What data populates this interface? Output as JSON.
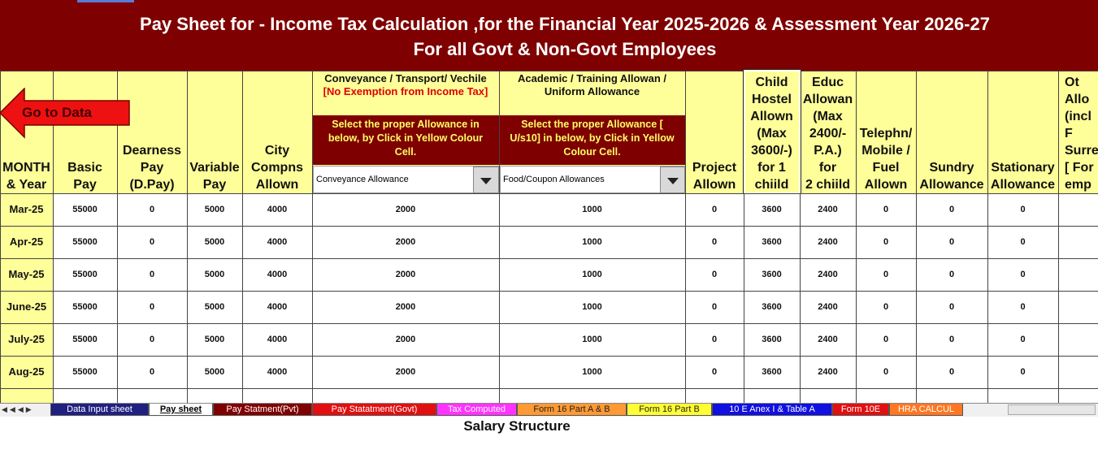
{
  "header": {
    "title_lines": [
      "Pay Sheet for - Income Tax Calculation ,for the Financial Year 2025-2026 &  Assessment Year 2026-27",
      "For all Govt & Non-Govt Employees"
    ]
  },
  "go_to_data": "Go to Data",
  "columns": [
    {
      "lines": [
        "MONTH",
        "& Year"
      ]
    },
    {
      "lines": [
        "Basic",
        "Pay"
      ]
    },
    {
      "lines": [
        "Dearness",
        "Pay",
        "(D.Pay)"
      ]
    },
    {
      "lines": [
        "Variable",
        "Pay"
      ]
    },
    {
      "lines": [
        "City",
        "Compns",
        "Allown"
      ]
    },
    {
      "lines": [
        "Project",
        "Allown"
      ]
    },
    {
      "lines": [
        "Child",
        "Hostel",
        "Allown",
        "(Max",
        "3600/-)",
        "for 1",
        "chiild"
      ]
    },
    {
      "lines": [
        "Educ",
        "Allowan",
        "(Max",
        "2400/-",
        "P.A.)",
        "for",
        "2 chiild"
      ]
    },
    {
      "lines": [
        "Telephn/",
        "Mobile /",
        "Fuel",
        "Allown"
      ]
    },
    {
      "lines": [
        "Sundry",
        "Allowance"
      ]
    },
    {
      "lines": [
        "Stationary",
        "Allowance"
      ]
    },
    {
      "lines": [
        "Ot",
        "Allo",
        "(incl",
        "F",
        "Surre",
        "[ For",
        "emp"
      ]
    }
  ],
  "conveyance": {
    "heading": "Conveyance / Transport/ Vechile",
    "note": "[No Exemption from Income Tax]",
    "instruction_lines": [
      "Select the proper Allowance  in",
      "below, by Click in Yellow Colour",
      "Cell."
    ],
    "selected": "Conveyance Allowance"
  },
  "academic": {
    "heading_lines": [
      "Academic / Training Allowan /",
      "Uniform Allowance"
    ],
    "instruction_lines": [
      "Select the proper Allowance [",
      "U/s10] in below, by Click in Yellow",
      "Colour Cell."
    ],
    "selected": "Food/Coupon Allowances"
  },
  "rows": [
    [
      "Mar-25",
      55000,
      0,
      5000,
      4000,
      2000,
      1000,
      0,
      3600,
      2400,
      0,
      0,
      0
    ],
    [
      "Apr-25",
      55000,
      0,
      5000,
      4000,
      2000,
      1000,
      0,
      3600,
      2400,
      0,
      0,
      0
    ],
    [
      "May-25",
      55000,
      0,
      5000,
      4000,
      2000,
      1000,
      0,
      3600,
      2400,
      0,
      0,
      0
    ],
    [
      "June-25",
      55000,
      0,
      5000,
      4000,
      2000,
      1000,
      0,
      3600,
      2400,
      0,
      0,
      0
    ],
    [
      "July-25",
      55000,
      0,
      5000,
      4000,
      2000,
      1000,
      0,
      3600,
      2400,
      0,
      0,
      0
    ],
    [
      "Aug-25",
      55000,
      0,
      5000,
      4000,
      2000,
      1000,
      0,
      3600,
      2400,
      0,
      0,
      0
    ]
  ],
  "tabs": [
    "Data Input sheet",
    "Pay sheet",
    "Pay Statment(Pvt)",
    "Pay Statatment(Govt)",
    "Tax Computed",
    "Form 16 Part A & B",
    "Form 16 Part B",
    "10 E Anex I & Table A",
    "Form 10E",
    "HRA CALCUL"
  ],
  "caption": "Salary Structure"
}
